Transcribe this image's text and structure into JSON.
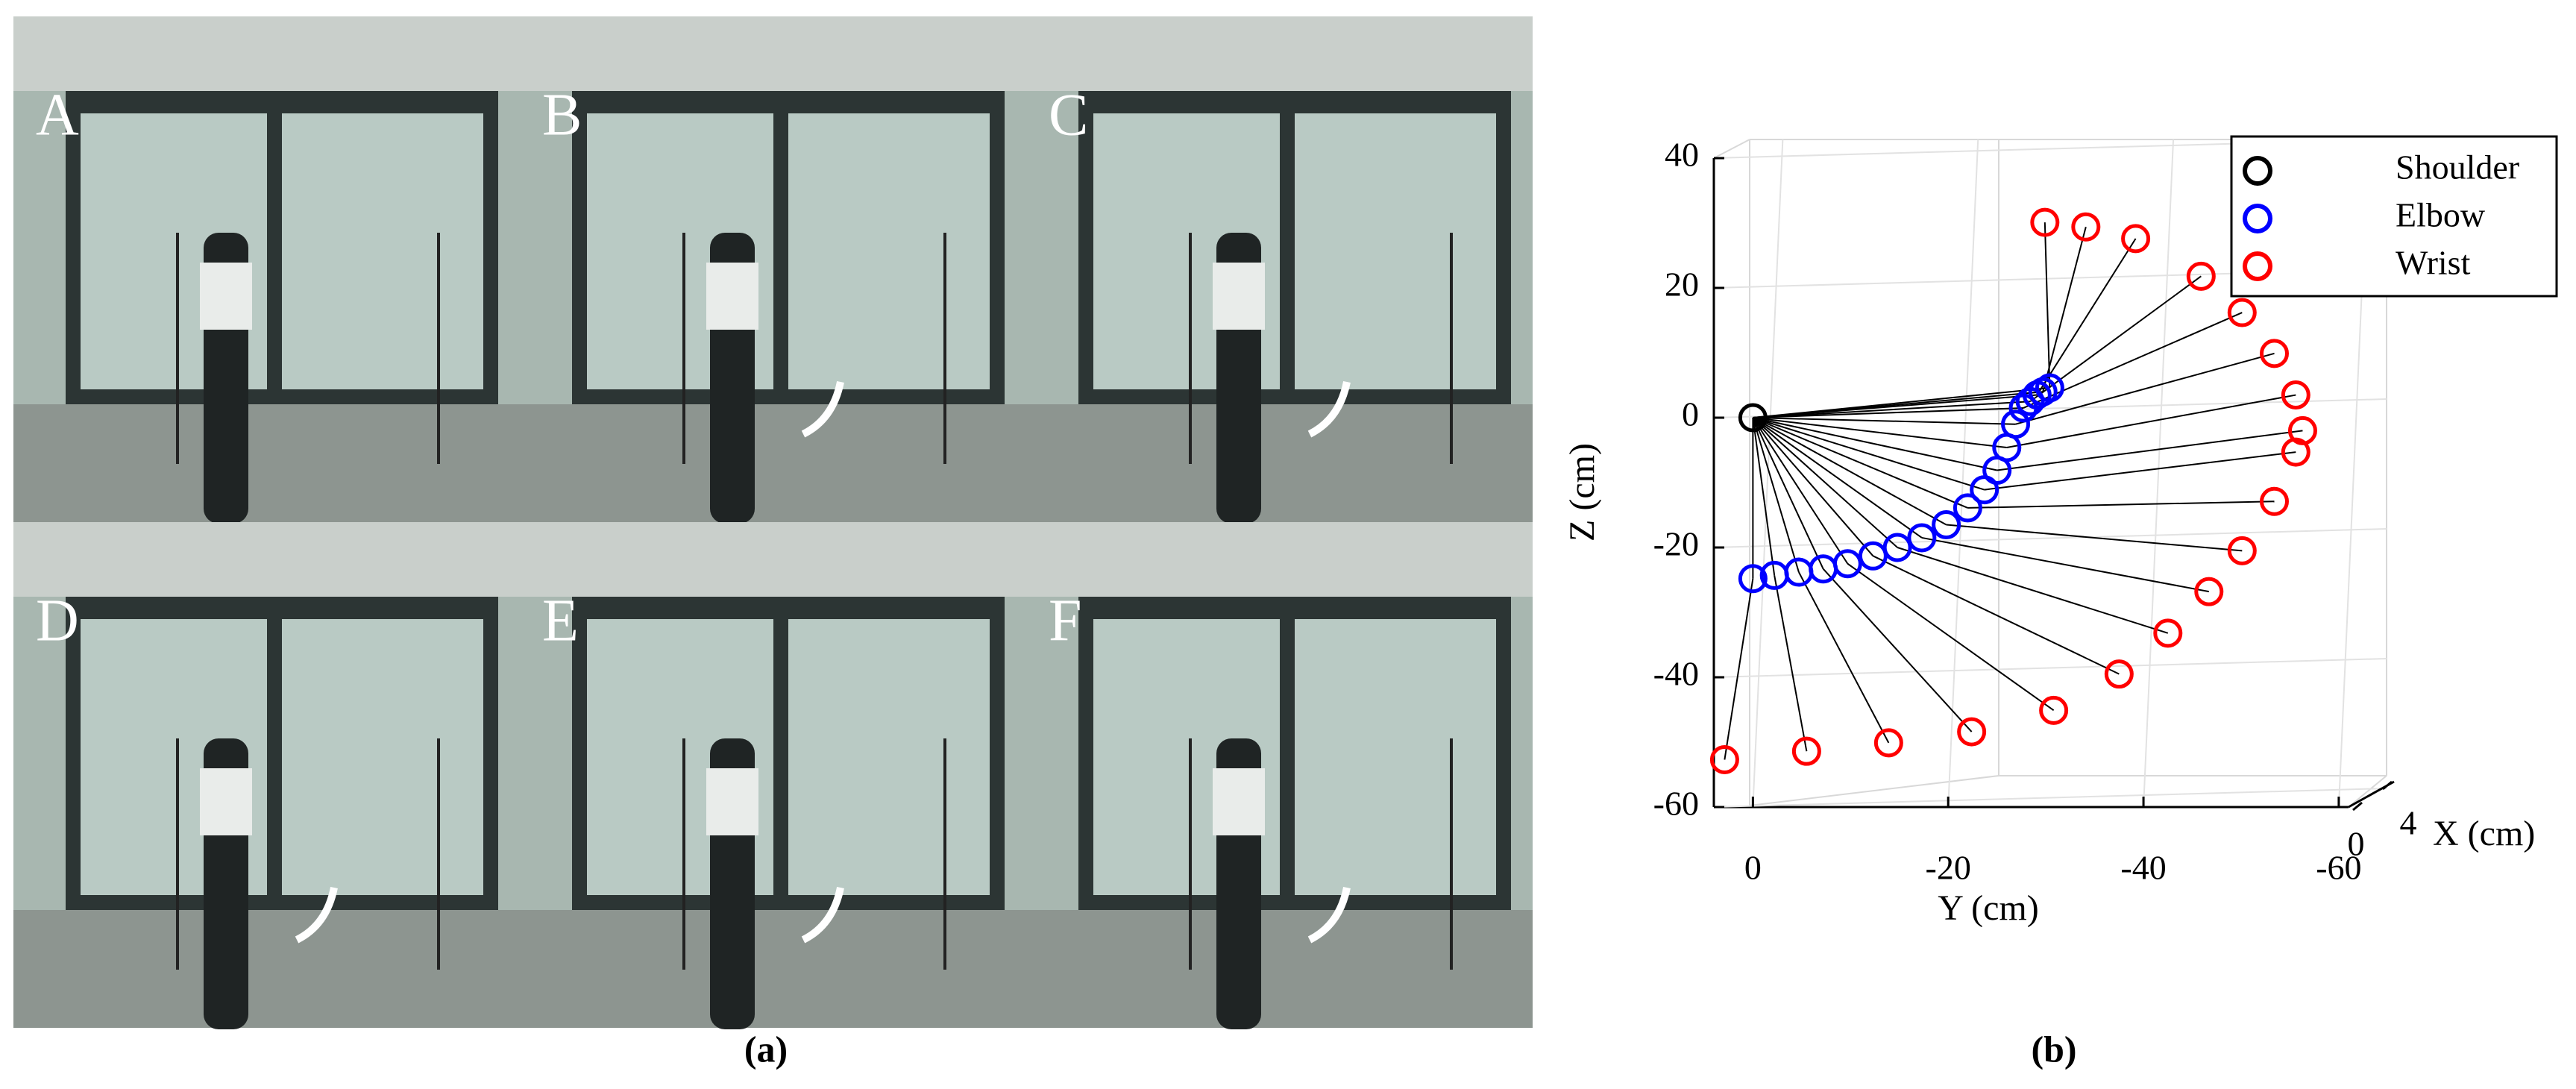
{
  "figure": {
    "panels": [
      "A",
      "B",
      "C",
      "D",
      "E",
      "F"
    ],
    "captions": [
      "(a)",
      "(b)"
    ]
  },
  "chart_data": {
    "type": "scatter",
    "xlabel": "Y (cm)",
    "ylabel": "Z (cm)",
    "zlabel": "X (cm)",
    "xlim": [
      4,
      -61
    ],
    "xticks": [
      0,
      -20,
      -40,
      -60
    ],
    "ylim": [
      -60,
      40
    ],
    "yticks": [
      40,
      20,
      0,
      -20,
      -40,
      -60
    ],
    "zticks": [
      0,
      4
    ],
    "legend": "upper right",
    "series": [
      {
        "name": "Shoulder",
        "color": "#000000",
        "x": [
          0
        ],
        "values": [
          0
        ]
      },
      {
        "name": "Elbow",
        "color": "#0000ff",
        "x": [
          0,
          -2.2,
          -4.7,
          -7.2,
          -9.7,
          -12.3,
          -14.8,
          -17.3,
          -19.8,
          -22.0,
          -23.7,
          -25.0,
          -26.0,
          -26.9,
          -27.7,
          -28.4,
          -29.1,
          -29.7,
          -30.4
        ],
        "values": [
          -24.8,
          -24.3,
          -23.8,
          -23.3,
          -22.5,
          -21.3,
          -20.0,
          -18.5,
          -16.5,
          -13.9,
          -11.1,
          -8.1,
          -4.6,
          -1.0,
          1.5,
          2.5,
          3.5,
          4.0,
          4.6
        ]
      },
      {
        "name": "Wrist",
        "color": "#ff0000",
        "x": [
          2.9,
          -5.5,
          -13.9,
          -22.4,
          -30.8,
          -37.5,
          -42.5,
          -46.7,
          -50.1,
          -53.4,
          -55.6,
          -56.3,
          -55.6,
          -53.4,
          -50.1,
          -45.9,
          -39.2,
          -34.1,
          -29.9
        ],
        "values": [
          -52.7,
          -51.4,
          -50.1,
          -48.4,
          -45.1,
          -39.5,
          -33.2,
          -26.8,
          -20.5,
          -12.9,
          -5.3,
          -2.0,
          3.5,
          9.9,
          16.2,
          21.8,
          27.6,
          29.4,
          30.1
        ]
      }
    ]
  }
}
